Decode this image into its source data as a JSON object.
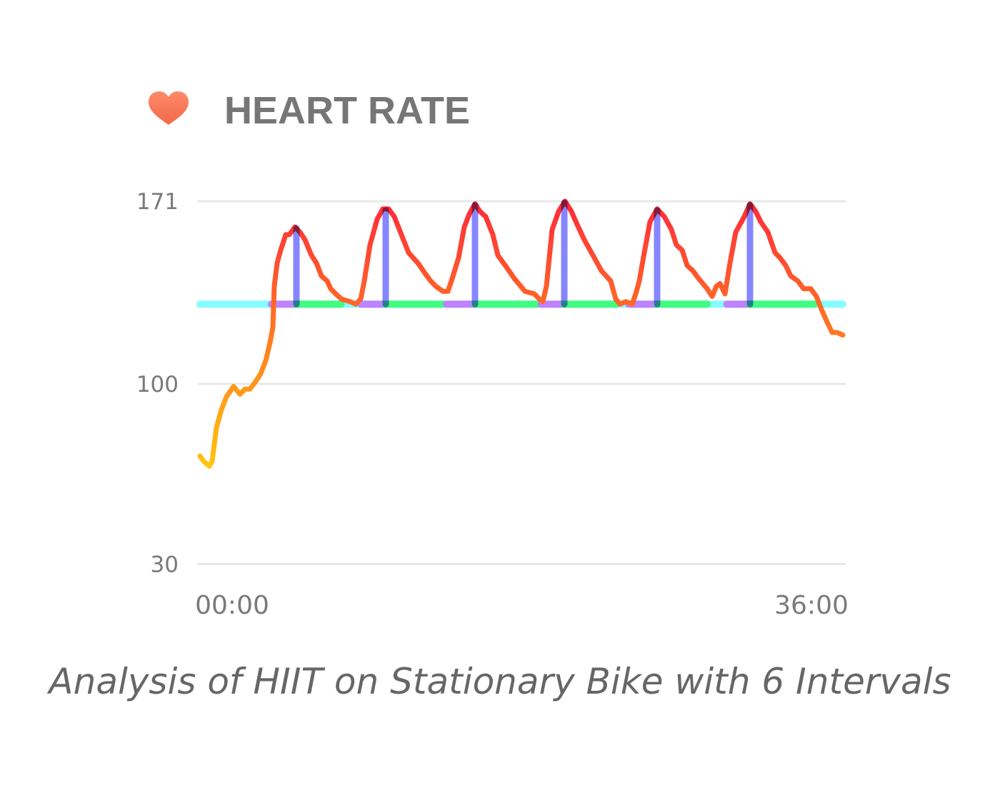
{
  "header": {
    "title": "HEART RATE",
    "icon": "heart-icon",
    "icon_color": "#f97a5a"
  },
  "caption": "Analysis of HIIT on Stationary Bike with 6 Intervals",
  "chart_data": {
    "type": "line",
    "title": "HEART RATE",
    "xlabel": "",
    "ylabel": "",
    "x_unit": "minutes",
    "xlim": [
      0,
      36
    ],
    "ylim": [
      30,
      171
    ],
    "yticks": [
      30,
      100,
      171
    ],
    "ytick_labels": [
      "30",
      "100",
      "171"
    ],
    "xtick_labels": [
      "00:00",
      "36:00"
    ],
    "grid": true,
    "colors": {
      "low": "#ffc80e",
      "mid": "#ff7a22",
      "high": "#ff2a3a",
      "baseline": "#7ffcff",
      "work": "#c17cff",
      "recovery": "#3dfc7a",
      "peak": "#7f7fff"
    },
    "baseline_bpm": 131,
    "series": [
      {
        "x": [
          0,
          0.2,
          0.52,
          0.68,
          0.92,
          1.2,
          1.48,
          1.88,
          2.24,
          2.52,
          2.8,
          3.12,
          3.4,
          3.68,
          3.92,
          4.08,
          4.16,
          4.32,
          4.52,
          4.8,
          5.0,
          5.32,
          5.6,
          5.88,
          6.24,
          6.52,
          6.8,
          7.12,
          7.32,
          7.6,
          7.92,
          8.4,
          8.72,
          9.0,
          9.2,
          9.52,
          9.92,
          10.24,
          10.56,
          10.88,
          11.28,
          11.68,
          12.2,
          12.6,
          12.92,
          13.2,
          13.6,
          13.88,
          14.08,
          14.48,
          14.8,
          15.08,
          15.4,
          15.68,
          16.0,
          16.4,
          16.68,
          17.2,
          17.6,
          18.2,
          18.72,
          19.0,
          19.2,
          19.4,
          19.72,
          20.08,
          20.44,
          20.8,
          21.12,
          21.52,
          22.0,
          22.48,
          23.0,
          23.28,
          23.52,
          23.84,
          24.2,
          24.4,
          24.6,
          24.88,
          25.2,
          25.6,
          26.0,
          26.4,
          26.68,
          27.0,
          27.28,
          27.6,
          27.92,
          28.4,
          28.68,
          28.92,
          29.12,
          29.4,
          29.68,
          30.0,
          30.48,
          30.8,
          31.12,
          31.4,
          31.8,
          32.2,
          32.48,
          32.8,
          33.08,
          33.48,
          33.8,
          34.2,
          34.52,
          34.8,
          35.12,
          35.4,
          35.68,
          36.0
        ],
        "y": [
          72,
          70,
          68,
          70,
          83,
          90,
          95,
          99,
          96,
          98,
          98,
          101,
          104,
          109,
          116,
          122,
          138,
          147,
          152,
          158,
          158,
          161,
          159,
          156,
          150,
          147,
          142,
          140,
          137,
          135,
          133,
          132,
          131,
          133,
          140,
          154,
          164,
          168,
          168,
          165,
          158,
          151,
          147,
          143,
          140,
          138,
          136,
          136,
          140,
          149,
          161,
          166,
          170,
          167,
          165,
          158,
          150,
          145,
          141,
          136,
          135,
          133,
          132,
          138,
          160,
          167,
          171,
          167,
          162,
          156,
          150,
          144,
          140,
          133,
          131,
          132,
          131,
          135,
          140,
          151,
          163,
          168,
          165,
          160,
          154,
          152,
          146,
          144,
          141,
          137,
          134,
          138,
          139,
          135,
          147,
          159,
          165,
          170,
          167,
          163,
          159,
          151,
          149,
          146,
          142,
          140,
          137,
          137,
          134,
          129,
          124,
          120,
          120,
          119
        ]
      }
    ],
    "intervals": [
      {
        "work": [
          4.0,
          5.4
        ],
        "peak_bpm": 161,
        "recovery": [
          5.4,
          7.9
        ]
      },
      {
        "work": [
          9.0,
          10.4
        ],
        "peak_bpm": 168,
        "recovery": [
          10.4,
          13.6
        ]
      },
      {
        "work": [
          13.8,
          15.4
        ],
        "peak_bpm": 170,
        "recovery": [
          15.4,
          18.9
        ]
      },
      {
        "work": [
          19.1,
          20.4
        ],
        "peak_bpm": 171,
        "recovery": [
          20.4,
          23.3
        ]
      },
      {
        "work": [
          24.0,
          25.6
        ],
        "peak_bpm": 168,
        "recovery": [
          25.6,
          28.4
        ]
      },
      {
        "work": [
          29.5,
          30.8
        ],
        "peak_bpm": 170,
        "recovery": [
          30.8,
          34.4
        ]
      }
    ]
  }
}
